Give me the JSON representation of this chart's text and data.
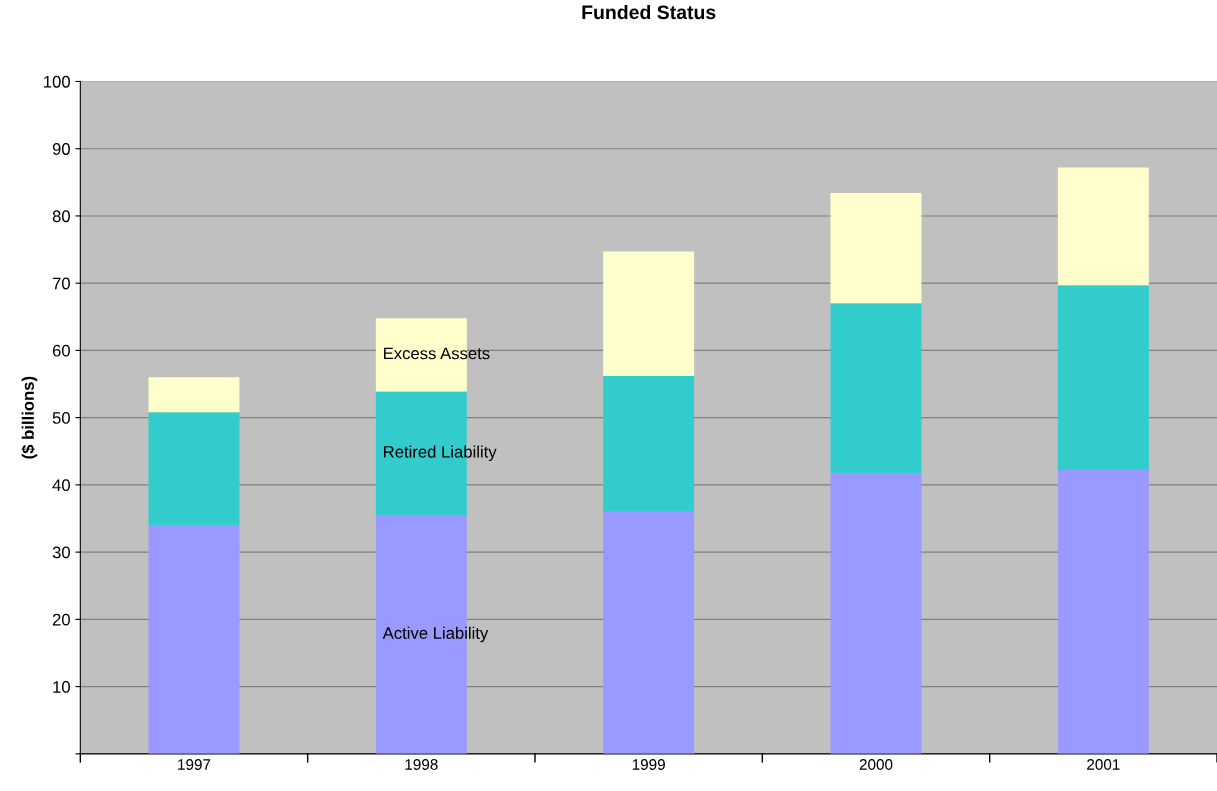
{
  "chart_data": {
    "type": "bar",
    "title": "Funded Status",
    "ylabel": "($ billions)",
    "stacked": true,
    "categories": [
      "1997",
      "1998",
      "1999",
      "2000",
      "2001"
    ],
    "series": [
      {
        "name": "Active Liability",
        "color": "#9999ff",
        "values": [
          34.0,
          35.5,
          36.0,
          41.7,
          42.2
        ]
      },
      {
        "name": "Retired Liability",
        "color": "#33cccc",
        "values": [
          16.8,
          18.4,
          20.2,
          25.3,
          27.5
        ]
      },
      {
        "name": "Excess Assets",
        "color": "#ffffcc",
        "values": [
          5.2,
          10.9,
          18.5,
          16.4,
          17.5
        ]
      }
    ],
    "ylim": [
      0,
      100
    ],
    "yticks": [
      {
        "value": 0,
        "label": null
      },
      10,
      20,
      30,
      40,
      50,
      60,
      70,
      80,
      90,
      100
    ],
    "grid": "y",
    "legend": false
  }
}
